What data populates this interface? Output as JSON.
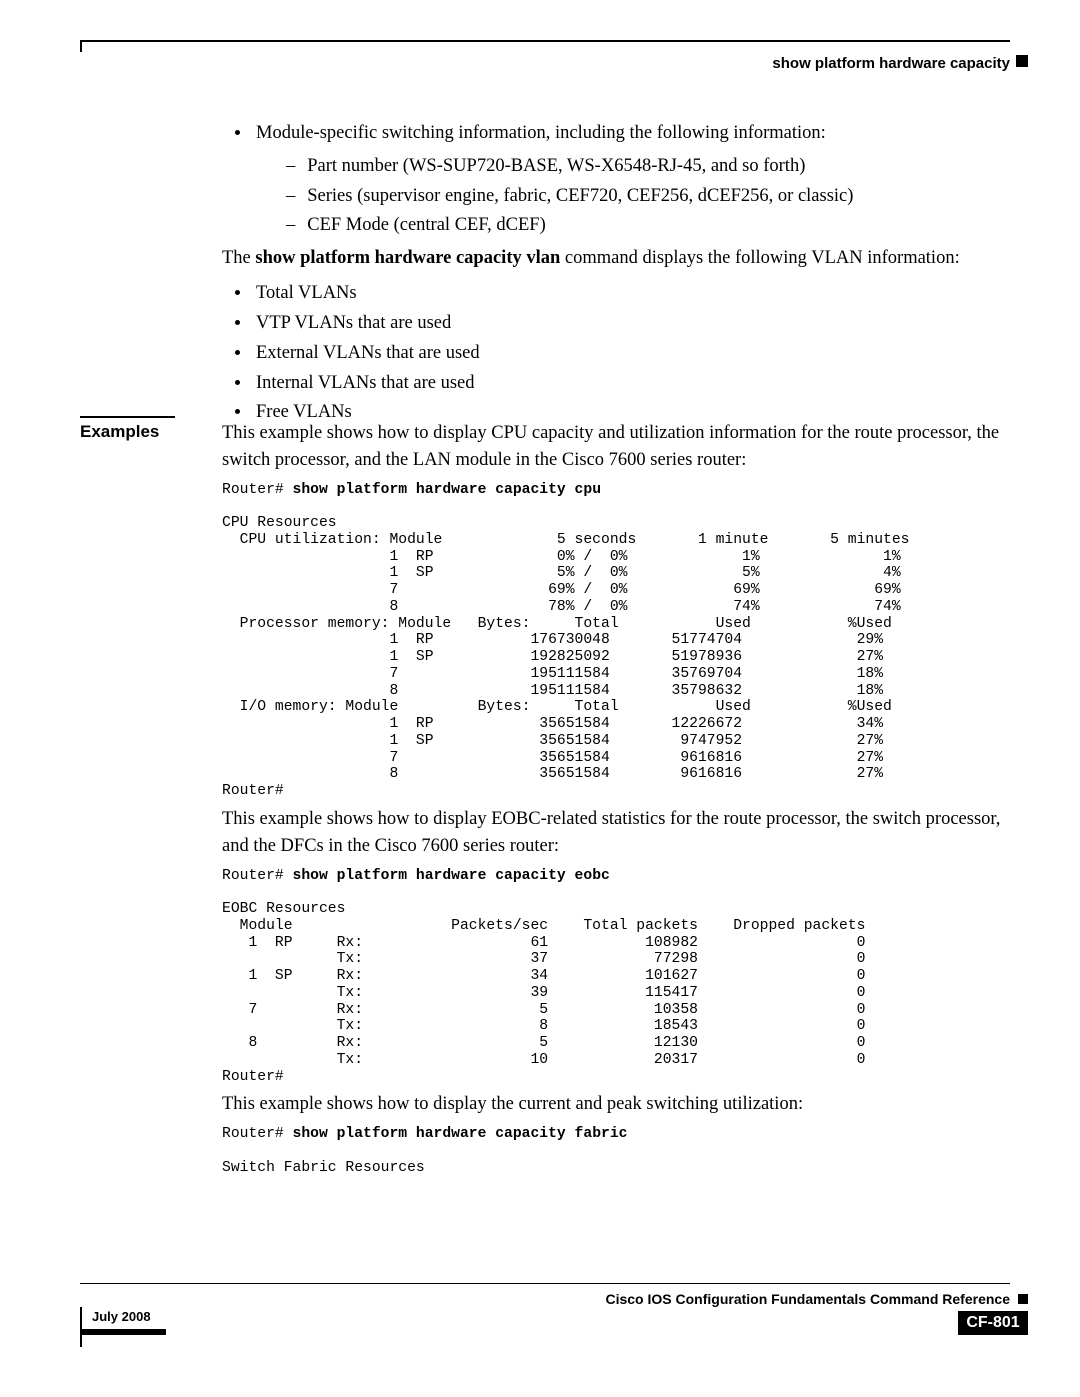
{
  "header": {
    "title": "show platform hardware capacity"
  },
  "body1": {
    "li1": "Module-specific switching information, including the following information:",
    "sub1": "Part number (WS-SUP720-BASE, WS-X6548-RJ-45, and so forth)",
    "sub2": "Series (supervisor engine, fabric, CEF720, CEF256, dCEF256, or classic)",
    "sub3": "CEF Mode (central CEF, dCEF)",
    "p_lead": "The ",
    "p_bold": "show platform hardware capacity vlan ",
    "p_tail": "command displays the following VLAN information:",
    "v1": "Total VLANs",
    "v2": "VTP VLANs that are used",
    "v3": "External VLANs that are used",
    "v4": "Internal VLANs that are used",
    "v5": "Free VLANs"
  },
  "examples": {
    "label": "Examples",
    "p1": "This example shows how to display CPU capacity and utilization information for the route processor, the switch processor, and the LAN module in the Cisco 7600 series router:",
    "cmd1_prefix": "Router# ",
    "cmd1": "show platform hardware capacity cpu",
    "out1": "CPU Resources\n  CPU utilization: Module             5 seconds       1 minute       5 minutes\n                   1  RP              0% /  0%             1%              1%\n                   1  SP              5% /  0%             5%              4%\n                   7                 69% /  0%            69%             69%\n                   8                 78% /  0%            74%             74%\n  Processor memory: Module   Bytes:     Total           Used           %Used\n                   1  RP           176730048       51774704             29%\n                   1  SP           192825092       51978936             27%\n                   7               195111584       35769704             18%\n                   8               195111584       35798632             18%\n  I/O memory: Module         Bytes:     Total           Used           %Used\n                   1  RP            35651584       12226672             34%\n                   1  SP            35651584        9747952             27%\n                   7                35651584        9616816             27%\n                   8                35651584        9616816             27%\nRouter#",
    "p2": "This example shows how to display EOBC-related statistics for the route processor, the switch processor, and the DFCs in the Cisco 7600 series router:",
    "cmd2_prefix": "Router# ",
    "cmd2": "show platform hardware capacity eobc",
    "out2": "EOBC Resources\n  Module                  Packets/sec    Total packets    Dropped packets\n   1  RP     Rx:                   61           108982                  0\n             Tx:                   37            77298                  0\n   1  SP     Rx:                   34           101627                  0\n             Tx:                   39           115417                  0\n   7         Rx:                    5            10358                  0\n             Tx:                    8            18543                  0\n   8         Rx:                    5            12130                  0\n             Tx:                   10            20317                  0\nRouter#",
    "p3": "This example shows how to display the current and peak switching utilization:",
    "cmd3_prefix": "Router# ",
    "cmd3": "show platform hardware capacity fabric",
    "out3": "Switch Fabric Resources"
  },
  "footer": {
    "doc_title": "Cisco IOS Configuration Fundamentals Command Reference",
    "date": "July 2008",
    "page": "CF-801"
  }
}
